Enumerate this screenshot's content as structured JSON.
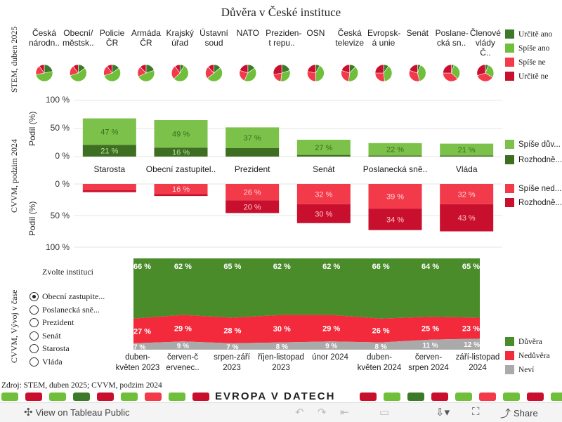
{
  "title": "Důvěra v České instituce",
  "stem": {
    "side_label": "STEM, duben 2025",
    "institutions": [
      "Česká národn..",
      "Obecní/ městsk..",
      "Policie ČR",
      "Armáda ČR",
      "Krajský úřad",
      "Ústavní soud",
      "NATO",
      "Preziden­t repu..",
      "OSN",
      "Česká televize",
      "Evropsk­á unie",
      "Senát",
      "Poslane­cká sn..",
      "Členové vlády Č.."
    ],
    "legend": [
      {
        "label": "Určitě ano",
        "color": "#3c7a2a"
      },
      {
        "label": "Spíše ano",
        "color": "#6fbf3a"
      },
      {
        "label": "Spíše ne",
        "color": "#f23a4a"
      },
      {
        "label": "Určitě ne",
        "color": "#c8102e"
      }
    ]
  },
  "cvvm": {
    "side_label": "CVVM, podzim 2024",
    "axis_title_top": "Podíl (%)",
    "axis_title_bottom": "Podíl (%)",
    "ticks_top": [
      "100 %",
      "50 %",
      "0 %"
    ],
    "ticks_bottom": [
      "0 %",
      "50 %",
      "100 %"
    ],
    "legend_pos": [
      {
        "label": "Spíše dův...",
        "color": "#7cc24a"
      },
      {
        "label": "Rozhodně...",
        "color": "#3d6e22"
      }
    ],
    "legend_neg": [
      {
        "label": "Spíše ned...",
        "color": "#f23a4a"
      },
      {
        "label": "Rozhodně...",
        "color": "#c8102e"
      }
    ]
  },
  "trend": {
    "side_label": "CVVM, Vývoj v čase",
    "chooser_title": "Zvolte instituci",
    "options": [
      "Obecní zastupite...",
      "Poslanecká sně...",
      "Prezident",
      "Senát",
      "Starosta",
      "Vláda"
    ],
    "selected_index": 0,
    "legend": [
      {
        "label": "Důvěra",
        "color": "#4a8c2a"
      },
      {
        "label": "Nedůvěra",
        "color": "#f22a3c"
      },
      {
        "label": "Neví",
        "color": "#aaaaaa"
      }
    ]
  },
  "source": "Zdroj: STEM, duben 2025; CVVM, podzim 2024",
  "brand": "EVROPA V DATECH",
  "toolbar": {
    "view_label": "View on Tableau Public",
    "share_label": "Share"
  },
  "chart_data": [
    {
      "type": "pie",
      "title": "STEM, duben 2025",
      "categories": [
        "Česká národn..",
        "Obecní/ městsk..",
        "Policie ČR",
        "Armáda ČR",
        "Krajský úřad",
        "Ústavní soud",
        "NATO",
        "Prezident repu..",
        "OSN",
        "Česká televize",
        "Evropská unie",
        "Senát",
        "Poslanecká sn..",
        "Členové vlády Č.."
      ],
      "series": [
        {
          "name": "Určitě ano",
          "values": [
            22,
            15,
            15,
            20,
            8,
            14,
            15,
            20,
            8,
            12,
            10,
            6,
            5,
            6
          ]
        },
        {
          "name": "Spíše ano",
          "values": [
            50,
            55,
            55,
            48,
            55,
            50,
            42,
            32,
            42,
            40,
            38,
            40,
            32,
            28
          ]
        },
        {
          "name": "Spíše ne",
          "values": [
            18,
            20,
            20,
            20,
            27,
            24,
            23,
            20,
            28,
            28,
            27,
            34,
            38,
            36
          ]
        },
        {
          "name": "Určitě ne",
          "values": [
            10,
            10,
            10,
            12,
            10,
            12,
            20,
            28,
            22,
            20,
            25,
            20,
            25,
            30
          ]
        }
      ]
    },
    {
      "type": "bar",
      "title": "CVVM, podzim 2024",
      "categories": [
        "Starosta",
        "Obecní zastupitel..",
        "Prezident",
        "Senát",
        "Poslanecká sně..",
        "Vláda"
      ],
      "ylabel": "Podíl (%)",
      "ylim": [
        -100,
        100
      ],
      "series": [
        {
          "name": "Rozhodně důvěřuje",
          "values": [
            21,
            16,
            15,
            3,
            2,
            2
          ]
        },
        {
          "name": "Spíše důvěřuje",
          "values": [
            47,
            49,
            37,
            27,
            22,
            21
          ]
        },
        {
          "name": "Spíše nedůvěřuje",
          "values": [
            10,
            16,
            26,
            32,
            39,
            32
          ]
        },
        {
          "name": "Rozhodně nedůvěřuje",
          "values": [
            3,
            3,
            20,
            30,
            34,
            43
          ]
        }
      ],
      "labeled": {
        "Spíše důvěřuje": [
          47,
          49,
          37,
          27,
          22,
          21
        ],
        "Rozhodně důvěřuje": [
          21,
          16,
          null,
          null,
          null,
          null
        ],
        "Spíše nedůvěřuje": [
          null,
          16,
          26,
          32,
          39,
          32
        ],
        "Rozhodně nedůvěřuje": [
          null,
          null,
          20,
          30,
          34,
          43
        ]
      }
    },
    {
      "type": "area",
      "title": "CVVM, Vývoj v čase",
      "subtitle": "Obecní zastupitelstvo",
      "x": [
        "duben-květen 2023",
        "červen-červenec 2023",
        "srpen-září 2023",
        "říjen-listopad 2023",
        "únor 2024",
        "duben-květen 2024",
        "červen-srpen 2024",
        "září-listopad 2024"
      ],
      "x_tick_labels": [
        "duben-\nkvěten 2023",
        "červen-č\nervenec..",
        "srpen-září\n2023",
        "říjen-listopad\n2023",
        "únor 2024",
        "duben-\nkvěten 2024",
        "červen-\nsrpen 2024",
        "září-listopad\n2024"
      ],
      "ylim": [
        0,
        100
      ],
      "series": [
        {
          "name": "Důvěra",
          "values": [
            66,
            62,
            65,
            62,
            62,
            66,
            64,
            65
          ]
        },
        {
          "name": "Nedůvěra",
          "values": [
            27,
            29,
            28,
            30,
            29,
            26,
            25,
            23
          ]
        },
        {
          "name": "Neví",
          "values": [
            7,
            9,
            7,
            8,
            9,
            8,
            11,
            12
          ]
        }
      ]
    }
  ]
}
